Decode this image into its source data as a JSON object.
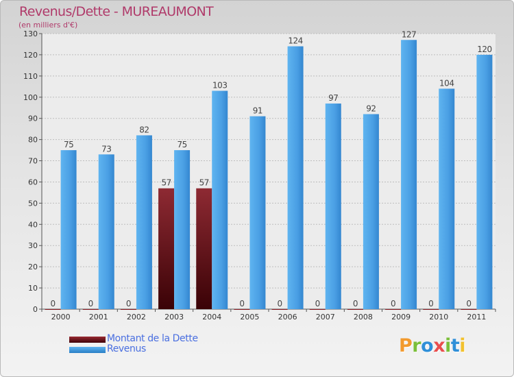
{
  "chart_data": {
    "type": "bar",
    "title": "Revenus/Dette - MUREAUMONT",
    "subtitle": "(en milliers d'€)",
    "categories": [
      "2000",
      "2001",
      "2002",
      "2003",
      "2004",
      "2005",
      "2006",
      "2007",
      "2008",
      "2009",
      "2010",
      "2011"
    ],
    "series": [
      {
        "name": "Montant de la Dette",
        "color": "#7a0f1a",
        "values": [
          0,
          0,
          0,
          57,
          57,
          0,
          0,
          0,
          0,
          0,
          0,
          0
        ]
      },
      {
        "name": "Revenus",
        "color": "#4aa3e6",
        "values": [
          75,
          73,
          82,
          75,
          103,
          91,
          124,
          97,
          92,
          127,
          104,
          120
        ]
      }
    ],
    "ylim": [
      0,
      130
    ],
    "yticks": [
      0,
      10,
      20,
      30,
      40,
      50,
      60,
      70,
      80,
      90,
      100,
      110,
      120,
      130
    ],
    "grid": true,
    "legend_position": "bottom-left",
    "xlabel": "",
    "ylabel": ""
  },
  "branding": {
    "logo_text": "Proxiti",
    "logo_colors": [
      "#f29a2e",
      "#7bbf3a",
      "#2f8fd8",
      "#e94e4e",
      "#7bbf3a",
      "#2f8fd8",
      "#f2c12e"
    ]
  }
}
